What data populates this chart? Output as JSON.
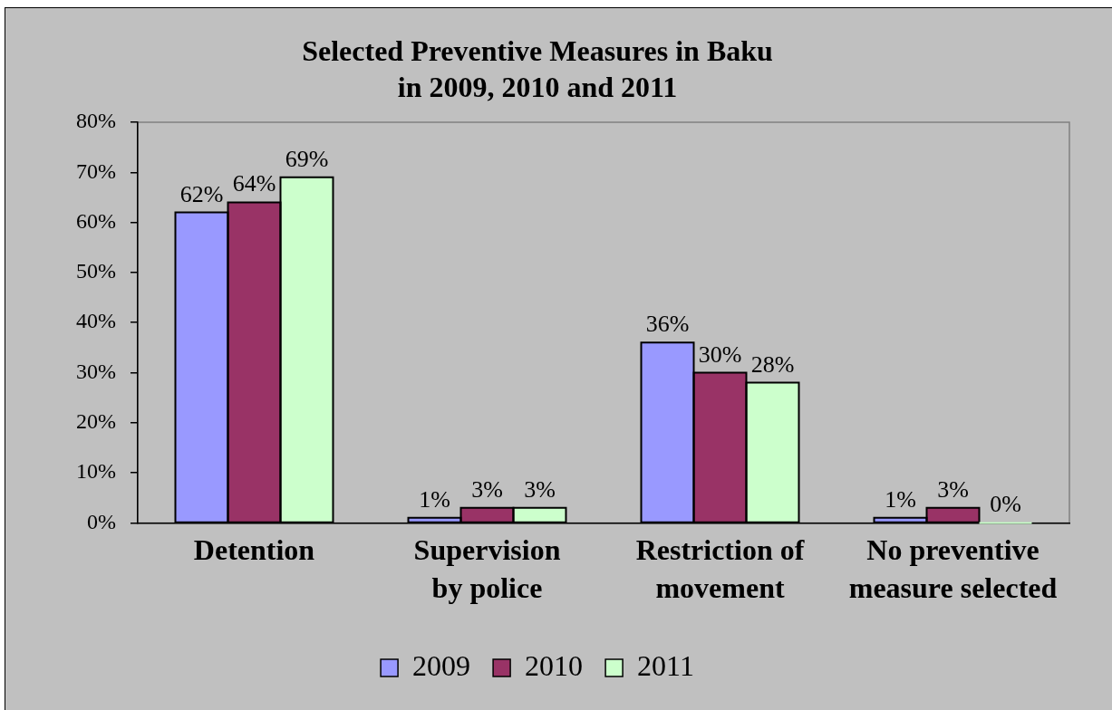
{
  "chart_data": {
    "type": "bar",
    "title": "Selected Preventive Measures in Baku\nin 2009, 2010 and 2011",
    "categories": [
      "Detention",
      "Supervision by police",
      "Restriction of movement",
      "No preventive measure selected"
    ],
    "series": [
      {
        "name": "2009",
        "color": "#9999ff",
        "values": [
          62,
          1,
          36,
          1
        ],
        "value_labels": [
          "62%",
          "1%",
          "36%",
          "1%"
        ]
      },
      {
        "name": "2010",
        "color": "#993366",
        "values": [
          64,
          3,
          30,
          3
        ],
        "value_labels": [
          "64%",
          "3%",
          "30%",
          "3%"
        ]
      },
      {
        "name": "2011",
        "color": "#ccffcc",
        "values": [
          69,
          3,
          28,
          0
        ],
        "value_labels": [
          "69%",
          "3%",
          "28%",
          "0%"
        ]
      }
    ],
    "ylim": [
      0,
      80
    ],
    "yticks": [
      {
        "value": 0,
        "label": "0%"
      },
      {
        "value": 10,
        "label": "10%"
      },
      {
        "value": 20,
        "label": "20%"
      },
      {
        "value": 30,
        "label": "30%"
      },
      {
        "value": 40,
        "label": "40%"
      },
      {
        "value": 50,
        "label": "50%"
      },
      {
        "value": 60,
        "label": "60%"
      },
      {
        "value": 70,
        "label": "70%"
      },
      {
        "value": 80,
        "label": "80%"
      }
    ],
    "grid": false,
    "legend": "bottom"
  }
}
